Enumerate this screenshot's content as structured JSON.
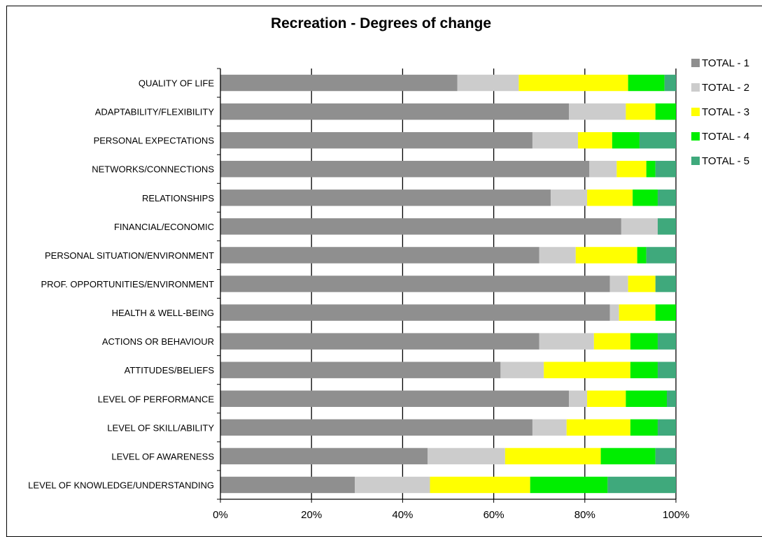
{
  "chart_data": {
    "type": "bar",
    "orientation": "horizontal",
    "stacked": "percent",
    "title": "Recreation - Degrees of change",
    "categories": [
      "QUALITY OF LIFE",
      "ADAPTABILITY/FLEXIBILITY",
      "PERSONAL EXPECTATIONS",
      "NETWORKS/CONNECTIONS",
      "RELATIONSHIPS",
      "FINANCIAL/ECONOMIC",
      "PERSONAL SITUATION/ENVIRONMENT",
      "PROF. OPPORTUNITIES/ENVIRONMENT",
      "HEALTH & WELL-BEING",
      "ACTIONS OR BEHAVIOUR",
      "ATTITUDES/BELIEFS",
      "LEVEL OF PERFORMANCE",
      "LEVEL OF SKILL/ABILITY",
      "LEVEL OF AWARENESS",
      "LEVEL OF KNOWLEDGE/UNDERSTANDING"
    ],
    "series": [
      {
        "name": "TOTAL - 1",
        "color": "#8f8f8f",
        "values": [
          52,
          76.5,
          68.5,
          81,
          72.5,
          88,
          70,
          85.5,
          85.5,
          70,
          61.5,
          76.5,
          68.5,
          45.5,
          29.5
        ]
      },
      {
        "name": "TOTAL - 2",
        "color": "#cccccc",
        "values": [
          13.5,
          12.5,
          10,
          6,
          8,
          8,
          8,
          4,
          2,
          12,
          9.5,
          4,
          7.5,
          17,
          16.5
        ]
      },
      {
        "name": "TOTAL - 3",
        "color": "#ffff00",
        "values": [
          24,
          6.5,
          7.5,
          6.5,
          10,
          0,
          13.5,
          6,
          8,
          8,
          19,
          8.5,
          14,
          21,
          22
        ]
      },
      {
        "name": "TOTAL - 4",
        "color": "#00ee00",
        "values": [
          8,
          4.5,
          6,
          2,
          5.5,
          0,
          2,
          0,
          4.5,
          6,
          6,
          9,
          6,
          12,
          17
        ]
      },
      {
        "name": "TOTAL - 5",
        "color": "#3fa97c",
        "values": [
          2.5,
          0,
          8,
          4.5,
          4,
          4,
          6.5,
          4.5,
          0,
          4,
          4,
          2,
          4,
          4.5,
          15
        ]
      }
    ],
    "x_ticks": [
      "0%",
      "20%",
      "40%",
      "60%",
      "80%",
      "100%"
    ],
    "xlim": [
      0,
      100
    ],
    "grid": "vertical",
    "legend_position": "right"
  }
}
